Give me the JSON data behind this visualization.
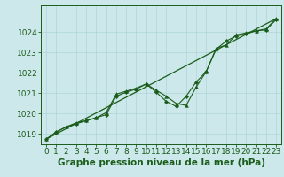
{
  "background_color": "#cce8ea",
  "grid_color": "#aed4d6",
  "line_color": "#1a5c1a",
  "marker_color": "#1a5c1a",
  "xlabel": "Graphe pression niveau de la mer (hPa)",
  "xlim": [
    -0.5,
    23.5
  ],
  "ylim": [
    1018.5,
    1025.3
  ],
  "yticks": [
    1019,
    1020,
    1021,
    1022,
    1023,
    1024
  ],
  "xticks": [
    0,
    1,
    2,
    3,
    4,
    5,
    6,
    7,
    8,
    9,
    10,
    11,
    12,
    13,
    14,
    15,
    16,
    17,
    18,
    19,
    20,
    21,
    22,
    23
  ],
  "series1_x": [
    0,
    1,
    2,
    3,
    4,
    5,
    6,
    7,
    8,
    9,
    10,
    11,
    12,
    13,
    14,
    15,
    16,
    17,
    18,
    19,
    20,
    21,
    22,
    23
  ],
  "series1_y": [
    1018.75,
    1019.1,
    1019.35,
    1019.55,
    1019.65,
    1019.8,
    1020.05,
    1020.95,
    1021.1,
    1021.25,
    1021.45,
    1021.15,
    1020.85,
    1020.5,
    1020.4,
    1021.3,
    1022.05,
    1023.2,
    1023.35,
    1023.85,
    1023.95,
    1024.05,
    1024.15,
    1024.65
  ],
  "series2_x": [
    0,
    1,
    2,
    3,
    4,
    5,
    6,
    7,
    8,
    9,
    10,
    11,
    12,
    13,
    14,
    15,
    16,
    17,
    18,
    19,
    20,
    21,
    22,
    23
  ],
  "series2_y": [
    1018.75,
    1019.1,
    1019.35,
    1019.5,
    1019.65,
    1019.8,
    1019.95,
    1020.85,
    1021.05,
    1021.2,
    1021.45,
    1021.05,
    1020.6,
    1020.35,
    1020.85,
    1021.55,
    1022.05,
    1023.15,
    1023.55,
    1023.8,
    1023.9,
    1024.05,
    1024.1,
    1024.6
  ],
  "series3_x": [
    0,
    23
  ],
  "series3_y": [
    1018.75,
    1024.65
  ],
  "tick_fontsize": 6.5,
  "label_fontsize": 7.5,
  "label_fontweight": "bold"
}
